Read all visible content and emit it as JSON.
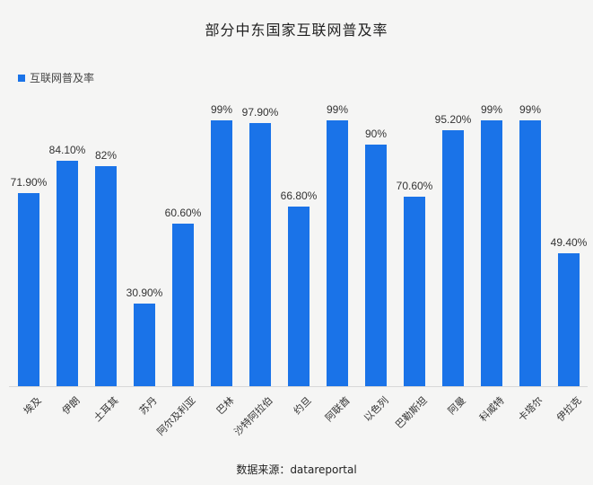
{
  "chart_data": {
    "type": "bar",
    "title": "部分中东国家互联网普及率",
    "xlabel": "",
    "ylabel": "",
    "ylim": [
      0,
      100
    ],
    "grid": false,
    "legend_position": "top-left",
    "categories": [
      "埃及",
      "伊朗",
      "土耳其",
      "苏丹",
      "阿尔及利亚",
      "巴林",
      "沙特阿拉伯",
      "约旦",
      "阿联酋",
      "以色列",
      "巴勒斯坦",
      "阿曼",
      "科威特",
      "卡塔尔",
      "伊拉克"
    ],
    "series": [
      {
        "name": "互联网普及率",
        "color": "#1a73e8",
        "values": [
          71.9,
          84.1,
          82,
          30.9,
          60.6,
          99,
          97.9,
          66.8,
          99,
          90,
          70.6,
          95.2,
          99,
          99,
          49.4
        ],
        "labels": [
          "71.90%",
          "84.10%",
          "82%",
          "30.90%",
          "60.60%",
          "99%",
          "97.90%",
          "66.80%",
          "99%",
          "90%",
          "70.60%",
          "95.20%",
          "99%",
          "99%",
          "49.40%"
        ]
      }
    ],
    "annotations": [
      "数据来源：datareportal"
    ]
  },
  "title": "部分中东国家互联网普及率",
  "legend": {
    "label": "互联网普及率",
    "color": "#1a73e8"
  },
  "source": "数据来源：datareportal"
}
